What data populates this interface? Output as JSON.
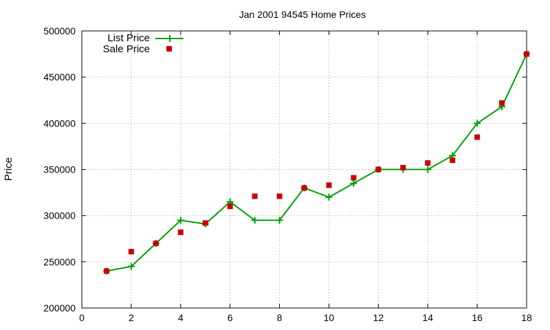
{
  "chart_data": {
    "type": "line",
    "title": "Jan 2001 94545 Home Prices",
    "xlabel": "",
    "ylabel": "Price",
    "xlim": [
      0,
      18
    ],
    "ylim": [
      200000,
      500000
    ],
    "xticks": [
      0,
      2,
      4,
      6,
      8,
      10,
      12,
      14,
      16,
      18
    ],
    "yticks": [
      200000,
      250000,
      300000,
      350000,
      400000,
      450000,
      500000
    ],
    "grid": true,
    "legend_position": "top-left",
    "series": [
      {
        "name": "List Price",
        "style": "lines+points",
        "color": "#00a000",
        "marker": "plus",
        "x": [
          1,
          2,
          3,
          4,
          5,
          6,
          7,
          8,
          9,
          10,
          11,
          12,
          13,
          14,
          15,
          16,
          17,
          18
        ],
        "y": [
          240000,
          245000,
          270000,
          295000,
          291000,
          315000,
          295000,
          295000,
          330000,
          320000,
          335000,
          350000,
          350000,
          350000,
          365000,
          400000,
          418000,
          475000
        ]
      },
      {
        "name": "Sale Price",
        "style": "points",
        "color": "#cc0000",
        "marker": "square",
        "x": [
          1,
          2,
          3,
          4,
          5,
          6,
          7,
          8,
          9,
          10,
          11,
          12,
          13,
          14,
          15,
          16,
          17,
          18
        ],
        "y": [
          240000,
          261000,
          270000,
          282000,
          292000,
          310000,
          321000,
          321000,
          330000,
          333000,
          341000,
          350000,
          352000,
          357000,
          360000,
          385000,
          422000,
          475000
        ]
      }
    ]
  }
}
